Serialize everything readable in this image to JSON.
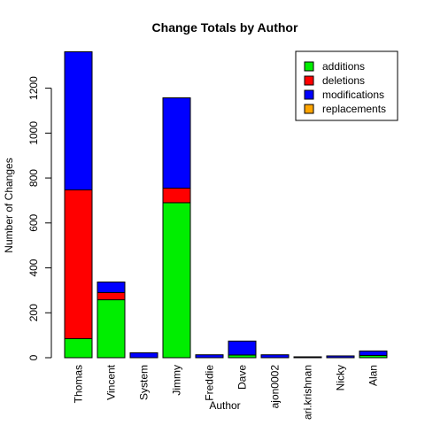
{
  "chart_data": {
    "type": "bar",
    "stacked": true,
    "title": "Change Totals by Author",
    "xlabel": "Author",
    "ylabel": "Number of Changes",
    "ylim": [
      0,
      1360
    ],
    "yticks": [
      0,
      200,
      400,
      600,
      800,
      1000,
      1200
    ],
    "categories": [
      "Thomas",
      "Vincent",
      "System",
      "Jimmy",
      "Freddie",
      "Dave",
      "ajon0002",
      "ari.krishnan",
      "Nicky",
      "Alan"
    ],
    "series": [
      {
        "name": "additions",
        "color": "#00ee00",
        "values": [
          85,
          258,
          0,
          690,
          0,
          12,
          0,
          0,
          0,
          10
        ]
      },
      {
        "name": "deletions",
        "color": "#ff0000",
        "values": [
          662,
          32,
          0,
          65,
          0,
          0,
          0,
          0,
          0,
          0
        ]
      },
      {
        "name": "modifications",
        "color": "#0000ff",
        "values": [
          615,
          47,
          22,
          402,
          13,
          62,
          13,
          4,
          8,
          20
        ]
      },
      {
        "name": "replacements",
        "color": "#ffa500",
        "values": [
          0,
          0,
          0,
          0,
          0,
          0,
          0,
          0,
          0,
          0
        ]
      }
    ],
    "legend_position": "top-right",
    "grid": false
  }
}
